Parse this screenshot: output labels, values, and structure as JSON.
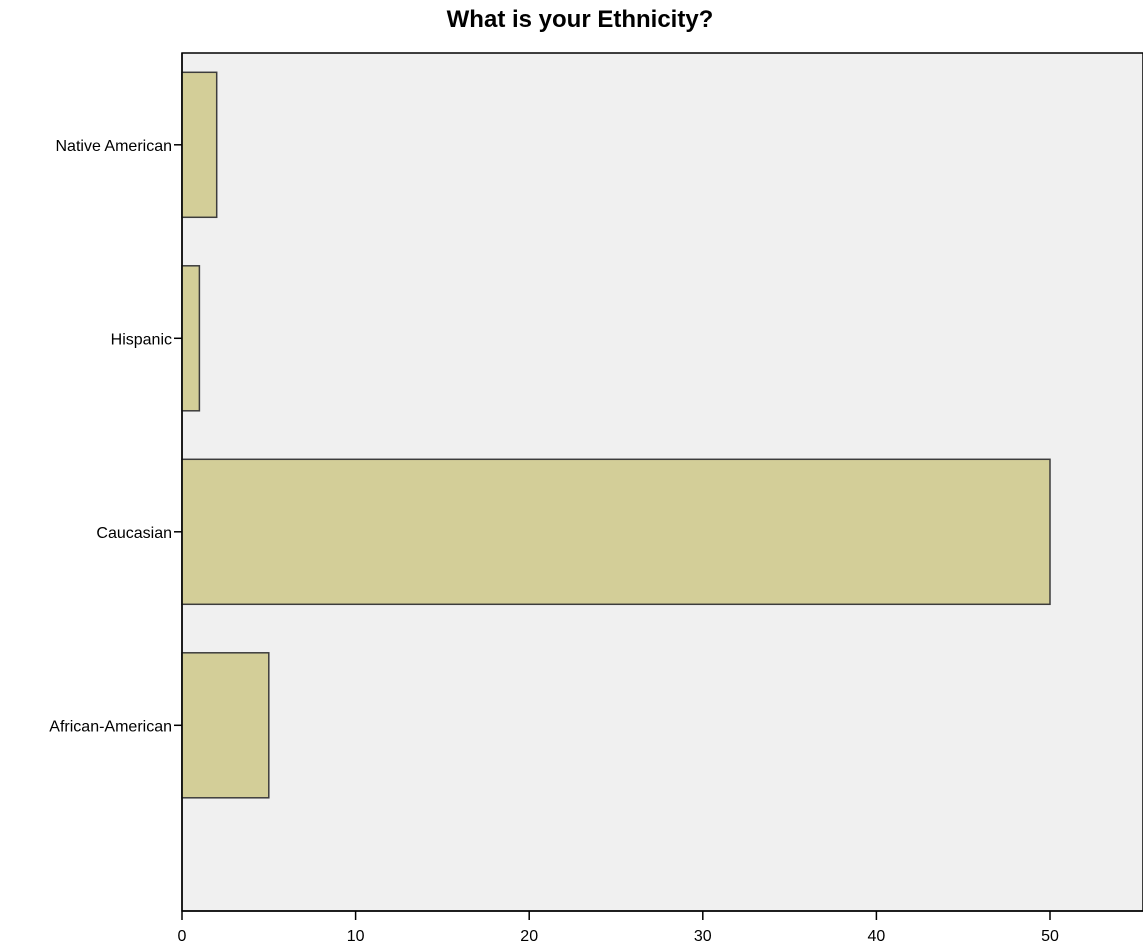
{
  "chart_data": {
    "type": "bar",
    "orientation": "horizontal",
    "title": "What is your Ethnicity?",
    "xlabel": "",
    "ylabel": "",
    "categories": [
      "Native American",
      "Hispanic",
      "Caucasian",
      "African-American"
    ],
    "values": [
      2,
      1,
      50,
      5
    ],
    "xlim": [
      0,
      55
    ],
    "x_ticks": [
      0,
      10,
      20,
      30,
      40,
      50
    ],
    "grid": false,
    "colors": {
      "bar_fill": "#d3ce98",
      "bar_stroke": "#3c3c3c",
      "plot_background": "#f0f0f0",
      "axis": "#000000"
    }
  }
}
